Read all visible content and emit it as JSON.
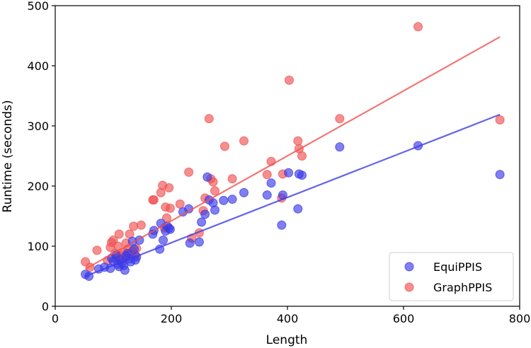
{
  "chart_data": {
    "type": "scatter",
    "title": "",
    "xlabel": "Length",
    "ylabel": "Runtime (seconds)",
    "xlim": [
      0,
      800
    ],
    "ylim": [
      0,
      500
    ],
    "xticks": [
      0,
      200,
      400,
      600,
      800
    ],
    "yticks": [
      0,
      100,
      200,
      300,
      400,
      500
    ],
    "grid": false,
    "legend_position": "bottom-right",
    "series": [
      {
        "name": "EquiPPIS",
        "color": "#3b3be8",
        "fit_line": {
          "x": [
            52,
            766
          ],
          "y": [
            50,
            319
          ]
        },
        "points": [
          [
            52,
            53
          ],
          [
            58,
            50
          ],
          [
            75,
            62
          ],
          [
            85,
            65
          ],
          [
            95,
            63
          ],
          [
            97,
            80
          ],
          [
            100,
            75
          ],
          [
            105,
            85
          ],
          [
            108,
            70
          ],
          [
            110,
            66
          ],
          [
            112,
            78
          ],
          [
            115,
            72
          ],
          [
            118,
            68
          ],
          [
            120,
            60
          ],
          [
            122,
            84
          ],
          [
            125,
            88
          ],
          [
            128,
            79
          ],
          [
            130,
            74
          ],
          [
            133,
            108
          ],
          [
            136,
            95
          ],
          [
            138,
            77
          ],
          [
            140,
            82
          ],
          [
            145,
            110
          ],
          [
            168,
            120
          ],
          [
            170,
            126
          ],
          [
            180,
            95
          ],
          [
            182,
            138
          ],
          [
            186,
            110
          ],
          [
            190,
            125
          ],
          [
            193,
            133
          ],
          [
            196,
            130
          ],
          [
            198,
            128
          ],
          [
            220,
            157
          ],
          [
            230,
            162
          ],
          [
            232,
            105
          ],
          [
            248,
            107
          ],
          [
            252,
            140
          ],
          [
            258,
            153
          ],
          [
            262,
            215
          ],
          [
            265,
            177
          ],
          [
            272,
            172
          ],
          [
            275,
            160
          ],
          [
            290,
            176
          ],
          [
            305,
            178
          ],
          [
            325,
            189
          ],
          [
            365,
            185
          ],
          [
            372,
            205
          ],
          [
            390,
            135
          ],
          [
            392,
            185
          ],
          [
            402,
            222
          ],
          [
            418,
            162
          ],
          [
            420,
            220
          ],
          [
            425,
            218
          ],
          [
            490,
            265
          ],
          [
            625,
            267
          ],
          [
            766,
            219
          ]
        ]
      },
      {
        "name": "GraphPPIS",
        "color": "#f05252",
        "fit_line": {
          "x": [
            52,
            766
          ],
          "y": [
            62,
            448
          ]
        },
        "points": [
          [
            52,
            74
          ],
          [
            60,
            65
          ],
          [
            72,
            93
          ],
          [
            90,
            76
          ],
          [
            95,
            98
          ],
          [
            97,
            106
          ],
          [
            100,
            110
          ],
          [
            103,
            88
          ],
          [
            105,
            80
          ],
          [
            108,
            100
          ],
          [
            110,
            120
          ],
          [
            113,
            85
          ],
          [
            115,
            78
          ],
          [
            118,
            90
          ],
          [
            120,
            82
          ],
          [
            122,
            105
          ],
          [
            125,
            95
          ],
          [
            128,
            120
          ],
          [
            130,
            88
          ],
          [
            133,
            92
          ],
          [
            135,
            133
          ],
          [
            138,
            85
          ],
          [
            140,
            96
          ],
          [
            148,
            135
          ],
          [
            168,
            177
          ],
          [
            170,
            177
          ],
          [
            182,
            189
          ],
          [
            185,
            201
          ],
          [
            188,
            130
          ],
          [
            190,
            165
          ],
          [
            192,
            147
          ],
          [
            196,
            197
          ],
          [
            198,
            163
          ],
          [
            215,
            170
          ],
          [
            230,
            223
          ],
          [
            235,
            113
          ],
          [
            248,
            122
          ],
          [
            255,
            159
          ],
          [
            258,
            180
          ],
          [
            265,
            312
          ],
          [
            268,
            212
          ],
          [
            272,
            207
          ],
          [
            275,
            192
          ],
          [
            292,
            266
          ],
          [
            305,
            212
          ],
          [
            325,
            275
          ],
          [
            365,
            219
          ],
          [
            372,
            241
          ],
          [
            390,
            180
          ],
          [
            392,
            220
          ],
          [
            403,
            376
          ],
          [
            418,
            275
          ],
          [
            420,
            262
          ],
          [
            425,
            250
          ],
          [
            490,
            312
          ],
          [
            625,
            465
          ],
          [
            766,
            310
          ]
        ]
      }
    ]
  }
}
